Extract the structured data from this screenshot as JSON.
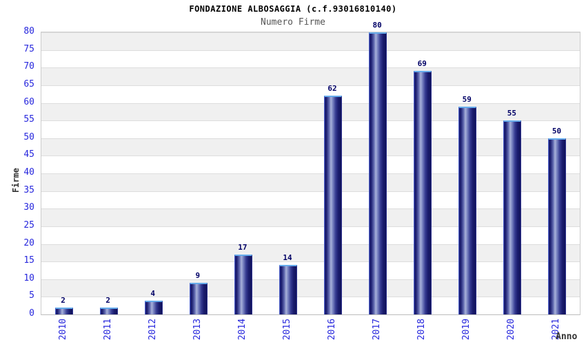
{
  "chart_data": {
    "type": "bar",
    "title": "FONDAZIONE ALBOSAGGIA (c.f.93016810140)",
    "subtitle": "Numero Firme",
    "xlabel": "Anno",
    "ylabel": "Firme",
    "categories": [
      "2010",
      "2011",
      "2012",
      "2013",
      "2014",
      "2015",
      "2016",
      "2017",
      "2018",
      "2019",
      "2020",
      "2021"
    ],
    "values": [
      2,
      2,
      4,
      9,
      17,
      14,
      62,
      80,
      69,
      59,
      55,
      50
    ],
    "ylim": [
      0,
      80
    ],
    "ytick_step": 5,
    "grid": "alternating-horizontal-bands",
    "legend": "none",
    "colors": {
      "bar_dark": "#1a1c6e",
      "bar_highlight": "#a8b1da",
      "bar_cap_border": "#66acec",
      "tick_label": "#2727dd",
      "value_label": "#000066",
      "band_gray": "#f0f0f0",
      "gridline": "#dddddd",
      "title": "#000000",
      "subtitle": "#555555",
      "axis_title": "#333333"
    }
  }
}
